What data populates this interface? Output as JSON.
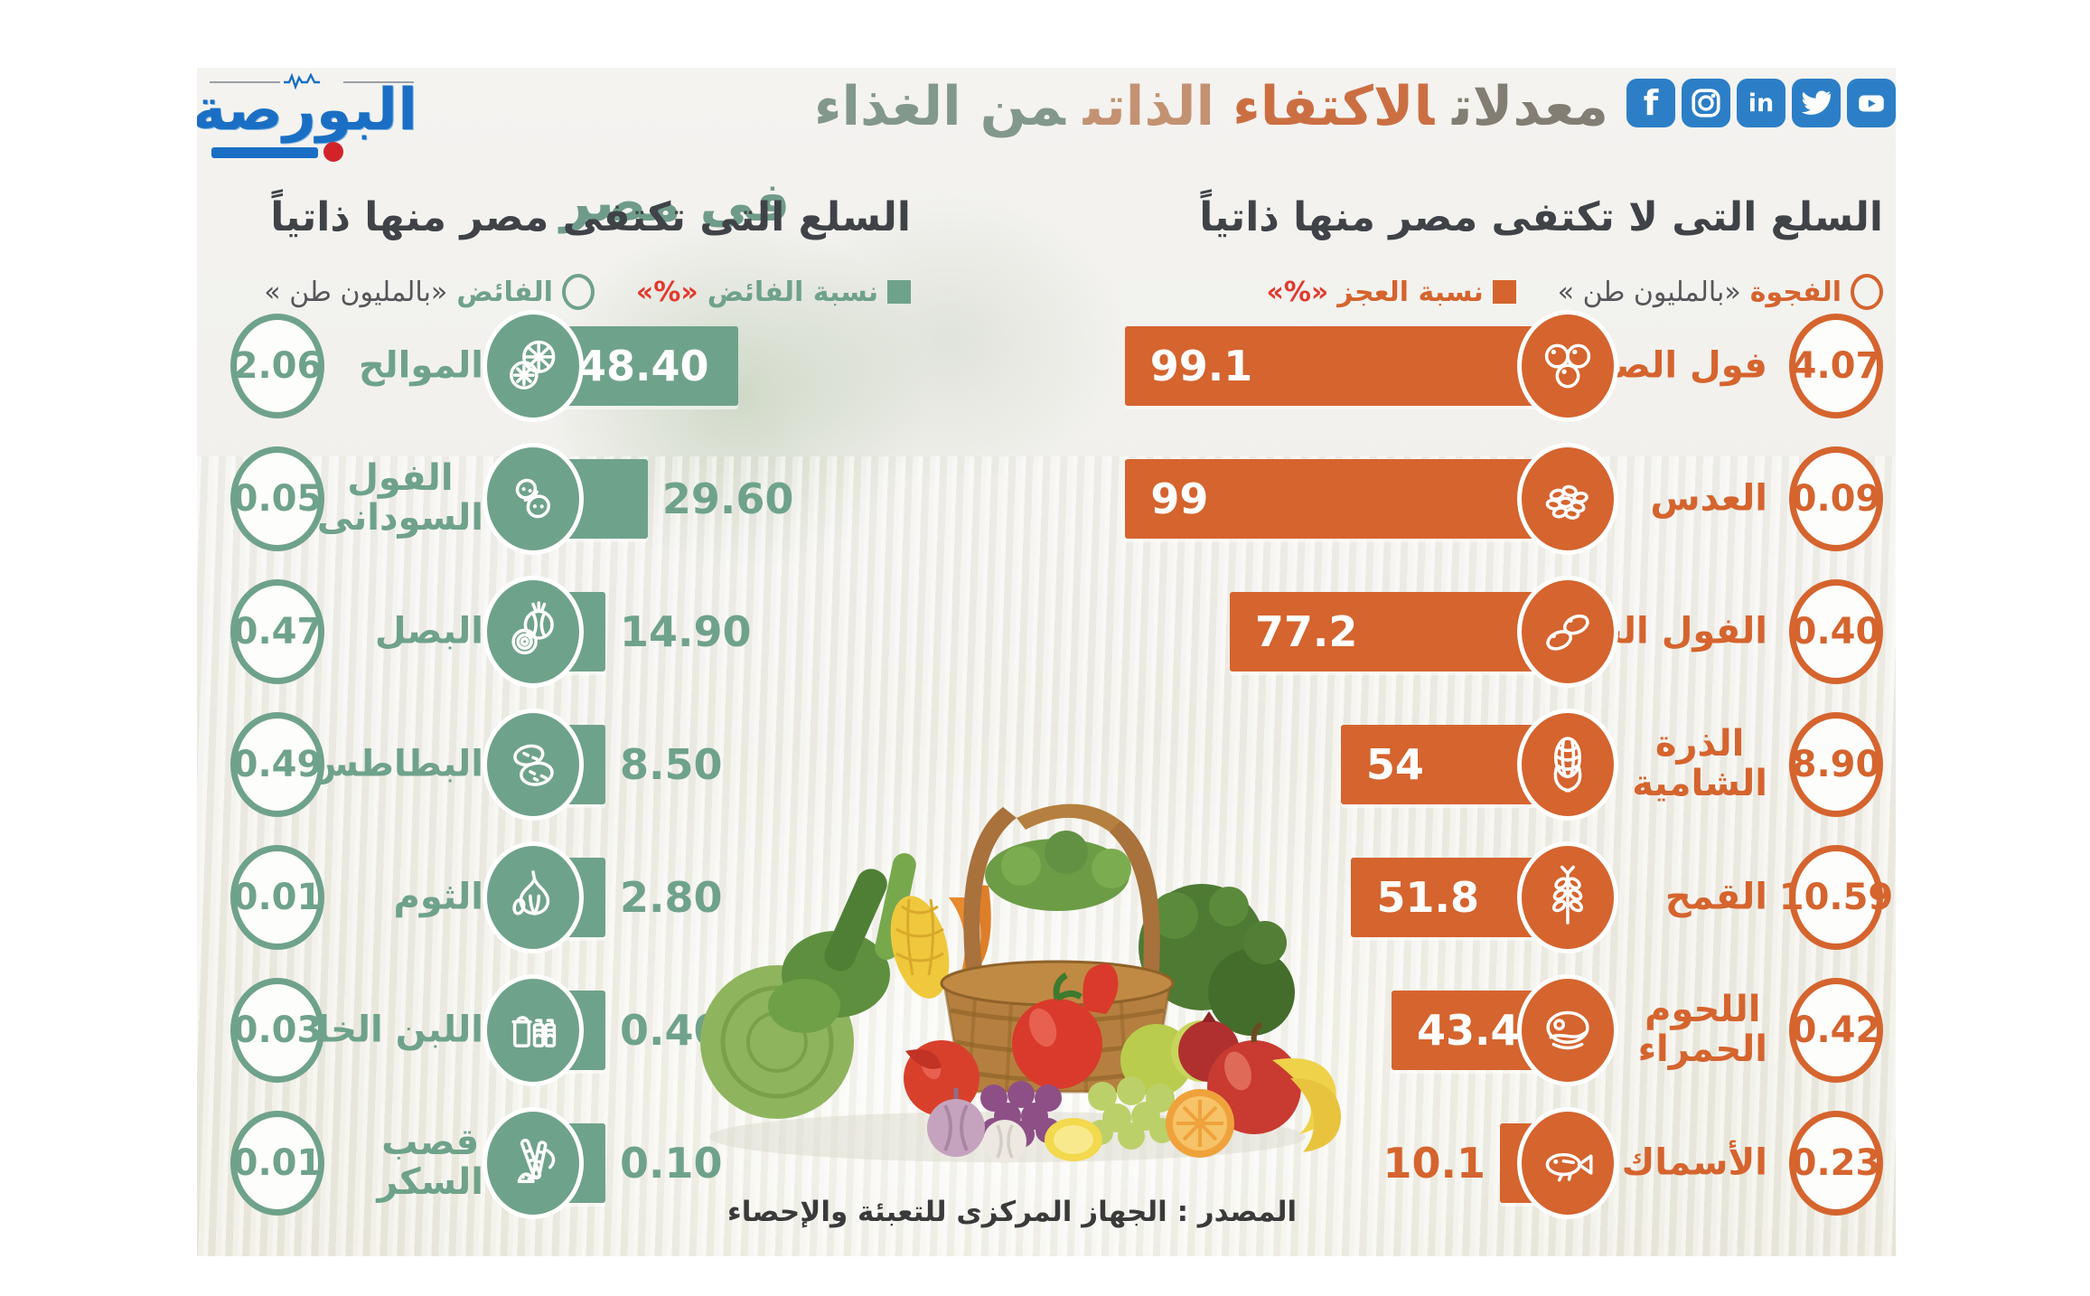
{
  "logo": {
    "name": "البورصة"
  },
  "title": {
    "w1": "معدلات",
    "w2": "الاكتفاء",
    "w3": "الذاتى",
    "w4": "من الغذاء",
    "w5": "فى مصر"
  },
  "social": {
    "icons": [
      "facebook",
      "instagram",
      "linkedin",
      "twitter",
      "youtube"
    ],
    "linkedin_text": "in",
    "facebook_text": "f"
  },
  "source": "المصدر : الجهاز المركزى للتعبئة والإحصاء",
  "colors": {
    "orange": "#D5642E",
    "green": "#6FA28B",
    "red_pct": "#E03A2F",
    "heading": "#3F4347",
    "social_blue": "#2C7FC6",
    "logo_blue": "#1A6FC4"
  },
  "deficit": {
    "heading": "السلع التى لا تكتفى مصر منها ذاتياً",
    "legend": {
      "gap_label": "الفجوة",
      "gap_unit": "«بالمليون طن »",
      "pct_label": "نسبة العجز",
      "pct_unit": "«%»"
    },
    "items": [
      {
        "label": "فول الصويا",
        "icon": "soybeans",
        "pct": 99.1,
        "pct_text": "99.1",
        "gap": "4.07"
      },
      {
        "label": "العدس",
        "icon": "lentils",
        "pct": 99,
        "pct_text": "99",
        "gap": "0.09"
      },
      {
        "label": "الفول الجاف",
        "icon": "dry-beans",
        "pct": 77.2,
        "pct_text": "77.2",
        "gap": "0.40"
      },
      {
        "label": "الذرة\nالشامية",
        "icon": "corn",
        "pct": 54,
        "pct_text": "54",
        "gap": "8.90"
      },
      {
        "label": "القمح",
        "icon": "wheat",
        "pct": 51.8,
        "pct_text": "51.8",
        "gap": "10.59"
      },
      {
        "label": "اللحوم\nالحمراء",
        "icon": "red-meat",
        "pct": 43.4,
        "pct_text": "43.4",
        "gap": "0.42"
      },
      {
        "label": "الأسماك",
        "icon": "fish",
        "pct": 10.1,
        "pct_text": "10.1",
        "gap": "0.23"
      }
    ]
  },
  "surplus": {
    "heading": "السلع التى تكتفى مصر منها ذاتياً",
    "legend": {
      "pct_label": "نسبة الفائض",
      "pct_unit": "«%»",
      "surplus_label": "الفائض",
      "surplus_unit": "«بالمليون طن »"
    },
    "items": [
      {
        "label": "الموالح",
        "icon": "citrus",
        "pct": 48.4,
        "pct_text": "48.40",
        "surplus": "2.06"
      },
      {
        "label": "الفول\nالسودانى",
        "icon": "peanut",
        "pct": 29.6,
        "pct_text": "29.60",
        "surplus": "0.05"
      },
      {
        "label": "البصل",
        "icon": "onion",
        "pct": 14.9,
        "pct_text": "14.90",
        "surplus": "0.47"
      },
      {
        "label": "البطاطس",
        "icon": "potato",
        "pct": 8.5,
        "pct_text": "8.50",
        "surplus": "0.49"
      },
      {
        "label": "الثوم",
        "icon": "garlic",
        "pct": 2.8,
        "pct_text": "2.80",
        "surplus": "0.01"
      },
      {
        "label": "اللبن الخام",
        "icon": "milk",
        "pct": 0.4,
        "pct_text": "0.40",
        "surplus": "0.03"
      },
      {
        "label": "قصب\nالسكر",
        "icon": "sugarcane",
        "pct": 0.1,
        "pct_text": "0.10",
        "surplus": "0.01"
      }
    ]
  },
  "chart_data": [
    {
      "type": "bar",
      "orientation": "horizontal",
      "title": "السلع التى لا تكتفى مصر منها ذاتياً",
      "categories": [
        "فول الصويا",
        "العدس",
        "الفول الجاف",
        "الذرة الشامية",
        "القمح",
        "اللحوم الحمراء",
        "الأسماك"
      ],
      "series": [
        {
          "name": "نسبة العجز «%»",
          "values": [
            99.1,
            99,
            77.2,
            54,
            51.8,
            43.4,
            10.1
          ]
        },
        {
          "name": "الفجوة «بالمليون طن»",
          "values": [
            4.07,
            0.09,
            0.4,
            8.9,
            10.59,
            0.42,
            0.23
          ]
        }
      ],
      "xlim": [
        0,
        100
      ],
      "legend_position": "top",
      "grid": false,
      "color": "#D5642E"
    },
    {
      "type": "bar",
      "orientation": "horizontal",
      "title": "السلع التى تكتفى مصر منها ذاتياً",
      "categories": [
        "الموالح",
        "الفول السودانى",
        "البصل",
        "البطاطس",
        "الثوم",
        "اللبن الخام",
        "قصب السكر"
      ],
      "series": [
        {
          "name": "نسبة الفائض «%»",
          "values": [
            48.4,
            29.6,
            14.9,
            8.5,
            2.8,
            0.4,
            0.1
          ]
        },
        {
          "name": "الفائض «بالمليون طن»",
          "values": [
            2.06,
            0.05,
            0.47,
            0.49,
            0.01,
            0.03,
            0.01
          ]
        }
      ],
      "xlim": [
        0,
        100
      ],
      "legend_position": "top",
      "grid": false,
      "color": "#6FA28B"
    }
  ]
}
